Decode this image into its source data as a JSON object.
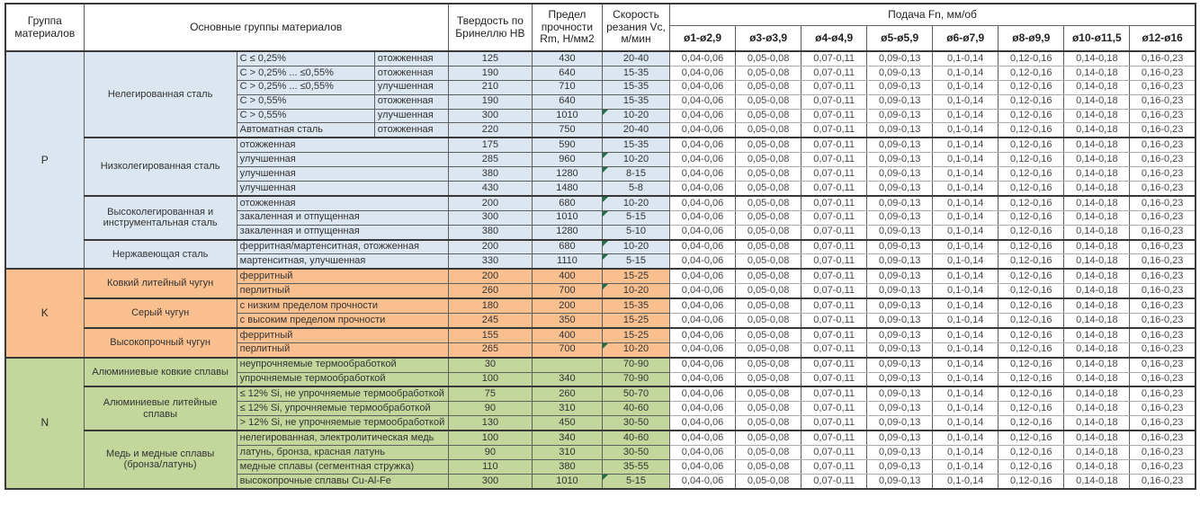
{
  "table": {
    "header": {
      "col_group": "Группа материалов",
      "col_main_groups": "Основные группы материалов",
      "col_hardness": "Твердость по Бринеллю HB",
      "col_strength": "Предел прочности Rm, Н/мм2",
      "col_speed": "Скорость резания Vc, м/мин",
      "feed_title": "Подача Fn, мм/об",
      "feed_cols": [
        "ø1-ø2,9",
        "ø3-ø3,9",
        "ø4-ø4,9",
        "ø5-ø5,9",
        "ø6-ø7,9",
        "ø8-ø9,9",
        "ø10-ø11,5",
        "ø12-ø16"
      ]
    },
    "feed_values": [
      "0,04-0,06",
      "0,05-0,08",
      "0,07-0,11",
      "0,09-0,13",
      "0,1-0,14",
      "0,12-0,16",
      "0,14-0,18",
      "0,16-0,23"
    ],
    "colors": {
      "group_p": "#DCE6F1",
      "group_k": "#FABF8F",
      "group_n": "#C3D69B",
      "flag_green": "#1E7145"
    },
    "groups": [
      {
        "letter": "P",
        "color": "#DCE6F1",
        "subgroups": [
          {
            "name": "Нелегированная сталь",
            "rows": [
              {
                "spec": "C ≤ 0,25%",
                "state": "отожженная",
                "hb": "125",
                "rm": "430",
                "vc": "20-40",
                "flag": false
              },
              {
                "spec": "C > 0,25% ... ≤0,55%",
                "state": "отожженная",
                "hb": "190",
                "rm": "640",
                "vc": "15-35",
                "flag": false
              },
              {
                "spec": "C > 0,25% ... ≤0,55%",
                "state": "улучшенная",
                "hb": "210",
                "rm": "710",
                "vc": "15-35",
                "flag": false
              },
              {
                "spec": "C > 0,55%",
                "state": "отожженная",
                "hb": "190",
                "rm": "640",
                "vc": "15-35",
                "flag": false
              },
              {
                "spec": "C > 0,55%",
                "state": "улучшенная",
                "hb": "300",
                "rm": "1010",
                "vc": "10-20",
                "flag": true
              },
              {
                "spec": "Автоматная сталь",
                "state": "отожженная",
                "hb": "220",
                "rm": "750",
                "vc": "20-40",
                "flag": false
              }
            ]
          },
          {
            "name": "Низколегированная сталь",
            "rows": [
              {
                "spec": "отожженная",
                "hb": "175",
                "rm": "590",
                "vc": "15-35",
                "flag": false
              },
              {
                "spec": "улучшенная",
                "hb": "285",
                "rm": "960",
                "vc": "10-20",
                "flag": true
              },
              {
                "spec": "улучшенная",
                "hb": "380",
                "rm": "1280",
                "vc": "8-15",
                "flag": true
              },
              {
                "spec": "улучшенная",
                "hb": "430",
                "rm": "1480",
                "vc": "5-8",
                "flag": false
              }
            ]
          },
          {
            "name": "Высоколегированная и инструментальная сталь",
            "rows": [
              {
                "spec": "отожженная",
                "hb": "200",
                "rm": "680",
                "vc": "10-20",
                "flag": true
              },
              {
                "spec": "закаленная и отпущенная",
                "hb": "300",
                "rm": "1010",
                "vc": "5-15",
                "flag": true
              },
              {
                "spec": "закаленная и отпущенная",
                "hb": "380",
                "rm": "1280",
                "vc": "5-10",
                "flag": false
              }
            ]
          },
          {
            "name": "Нержавеющая сталь",
            "rows": [
              {
                "spec": "ферритная/мартенситная, отожженная",
                "hb": "200",
                "rm": "680",
                "vc": "10-20",
                "flag": true
              },
              {
                "spec": "мартенситная, улучшенная",
                "hb": "330",
                "rm": "1110",
                "vc": "5-15",
                "flag": true
              }
            ]
          }
        ]
      },
      {
        "letter": "K",
        "color": "#FABF8F",
        "subgroups": [
          {
            "name": "Ковкий литейный чугун",
            "rows": [
              {
                "spec": "ферритный",
                "hb": "200",
                "rm": "400",
                "vc": "15-25",
                "flag": false
              },
              {
                "spec": "перлитный",
                "hb": "260",
                "rm": "700",
                "vc": "10-20",
                "flag": true
              }
            ]
          },
          {
            "name": "Серый чугун",
            "rows": [
              {
                "spec": "с низким пределом прочности",
                "hb": "180",
                "rm": "200",
                "vc": "15-35",
                "flag": false
              },
              {
                "spec": "с высоким пределом прочности",
                "hb": "245",
                "rm": "350",
                "vc": "15-25",
                "flag": false
              }
            ]
          },
          {
            "name": "Высокопрочный чугун",
            "rows": [
              {
                "spec": "ферритный",
                "hb": "155",
                "rm": "400",
                "vc": "15-25",
                "flag": false
              },
              {
                "spec": "перлитный",
                "hb": "265",
                "rm": "700",
                "vc": "10-20",
                "flag": true
              }
            ]
          }
        ]
      },
      {
        "letter": "N",
        "color": "#C3D69B",
        "subgroups": [
          {
            "name": "Алюминиевые ковкие сплавы",
            "rows": [
              {
                "spec": "неупрочняемые термообработкой",
                "hb": "30",
                "rm": "",
                "vc": "70-90",
                "flag": false
              },
              {
                "spec": "упрочняемые термообработкой",
                "hb": "100",
                "rm": "340",
                "vc": "70-90",
                "flag": false
              }
            ]
          },
          {
            "name": "Алюминиевые литейные сплавы",
            "rows": [
              {
                "spec": "≤ 12% Si, не упрочняемые термообработкой",
                "hb": "75",
                "rm": "260",
                "vc": "50-70",
                "flag": false
              },
              {
                "spec": "≤ 12% Si, упрочняемые термообработкой",
                "hb": "90",
                "rm": "310",
                "vc": "40-60",
                "flag": false
              },
              {
                "spec": "> 12% Si, не упрочняемые термообработкой",
                "hb": "130",
                "rm": "450",
                "vc": "30-50",
                "flag": false
              }
            ]
          },
          {
            "name": "Медь и медные сплавы (бронза/латунь)",
            "rows": [
              {
                "spec": "нелегированная, электролитическая медь",
                "hb": "100",
                "rm": "340",
                "vc": "40-60",
                "flag": false
              },
              {
                "spec": "латунь, бронза, красная латунь",
                "hb": "90",
                "rm": "310",
                "vc": "30-50",
                "flag": false
              },
              {
                "spec": "медные сплавы (сегментная стружка)",
                "hb": "110",
                "rm": "380",
                "vc": "35-55",
                "flag": false
              },
              {
                "spec": "высокопрочные сплавы Cu-Al-Fe",
                "hb": "300",
                "rm": "1010",
                "vc": "5-15",
                "flag": true
              }
            ]
          }
        ]
      }
    ]
  }
}
